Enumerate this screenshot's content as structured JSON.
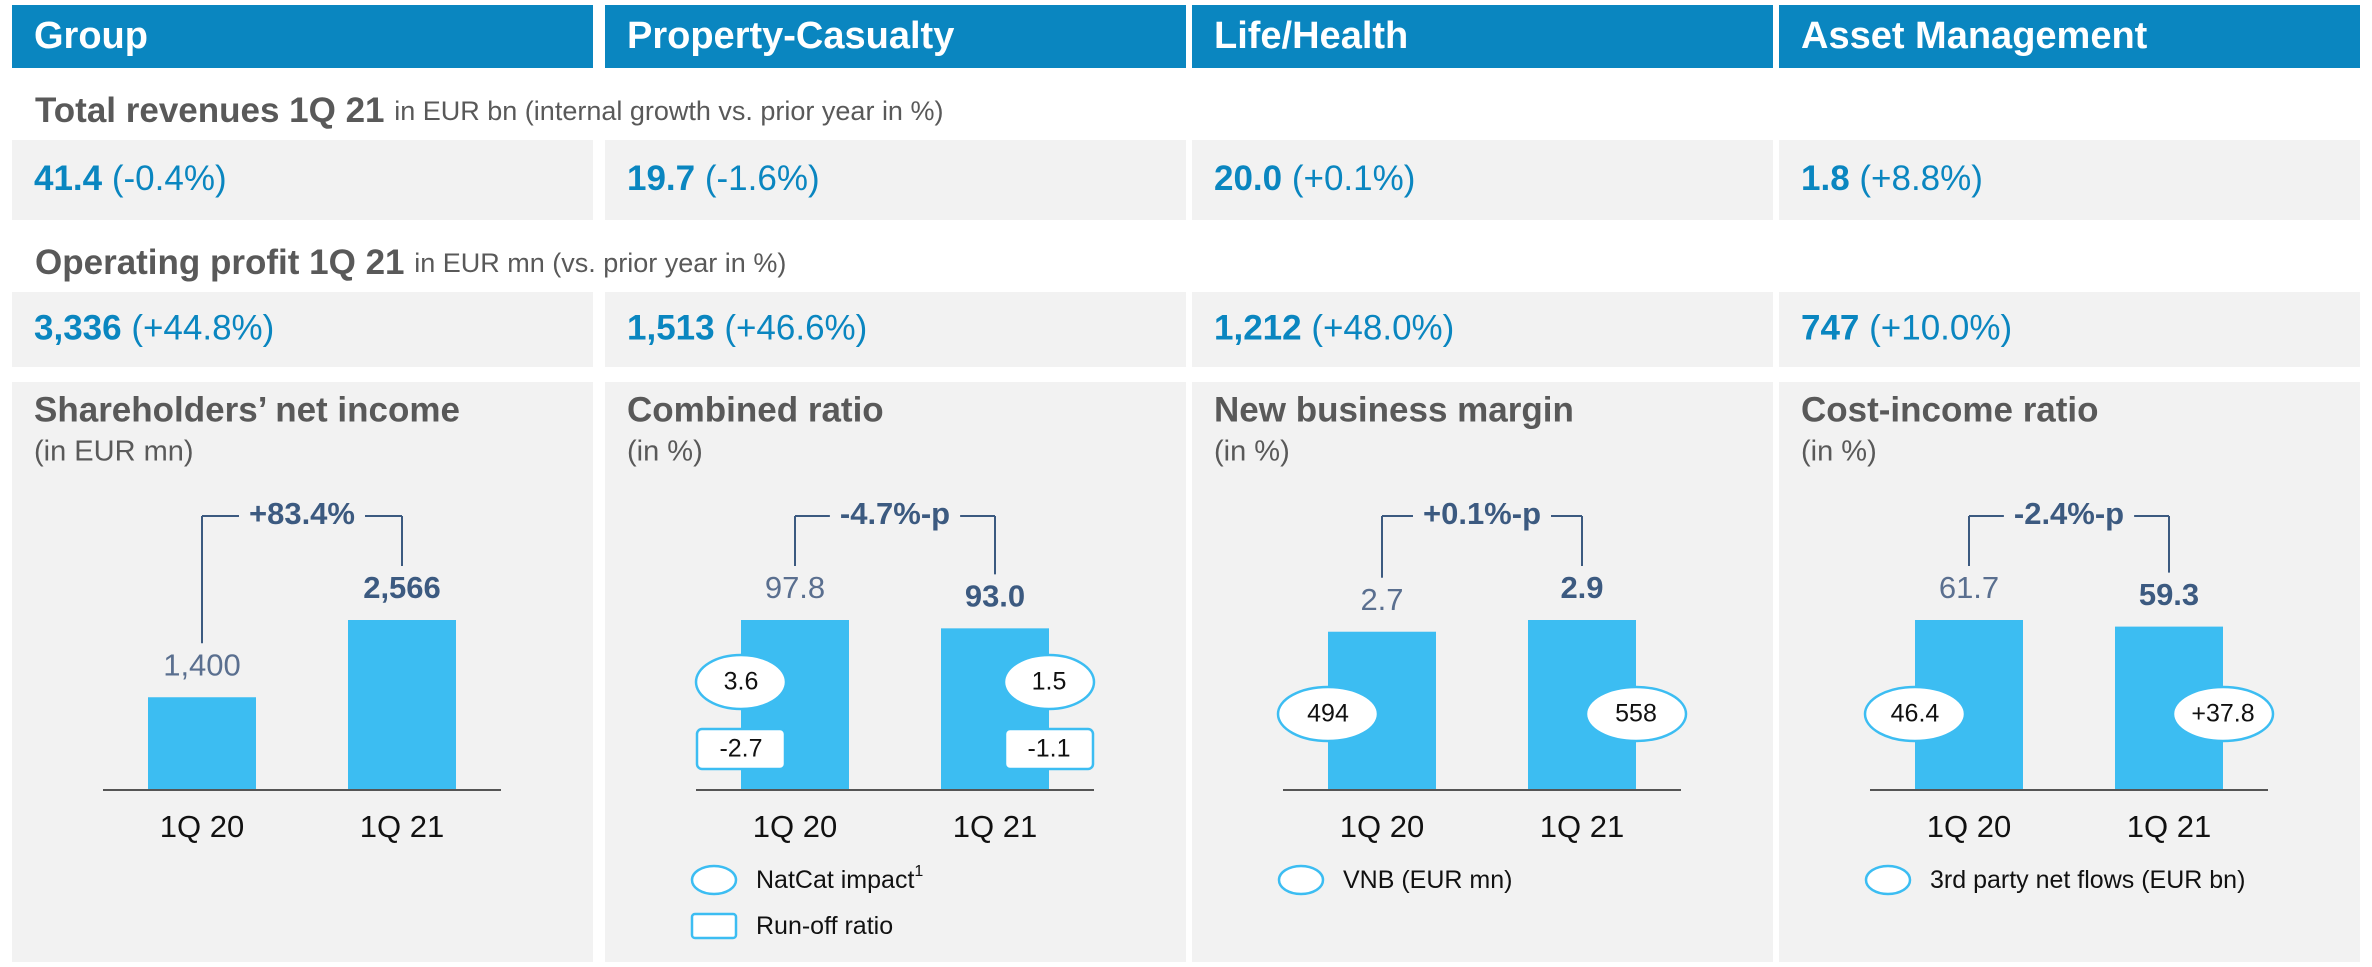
{
  "columns": [
    "Group",
    "Property-Casualty",
    "Life/Health",
    "Asset Management"
  ],
  "revenues": {
    "title": "Total revenues 1Q 21",
    "subtitle": "in EUR bn (internal growth vs. prior year in %)",
    "items": [
      {
        "value": "41.4",
        "change": "(-0.4%)"
      },
      {
        "value": "19.7",
        "change": "(-1.6%)"
      },
      {
        "value": "20.0",
        "change": "(+0.1%)"
      },
      {
        "value": "1.8",
        "change": "(+8.8%)"
      }
    ]
  },
  "operating_profit": {
    "title": "Operating profit 1Q 21",
    "subtitle": "in EUR mn (vs. prior year in %)",
    "items": [
      {
        "value": "3,336",
        "change": "(+44.8%)"
      },
      {
        "value": "1,513",
        "change": "(+46.6%)"
      },
      {
        "value": "1,212",
        "change": "(+48.0%)"
      },
      {
        "value": "747",
        "change": "(+10.0%)"
      }
    ]
  },
  "chart_data": [
    {
      "type": "bar",
      "title": "Shareholders’ net income",
      "subtitle": "(in EUR mn)",
      "categories": [
        "1Q 20",
        "1Q 21"
      ],
      "values": [
        1400,
        2566
      ],
      "value_labels": [
        "1,400",
        "2,566"
      ],
      "annotation": "+83.4%",
      "color": "#3cbdf2"
    },
    {
      "type": "bar",
      "title": "Combined ratio",
      "subtitle": "(in %)",
      "categories": [
        "1Q 20",
        "1Q 21"
      ],
      "values": [
        97.8,
        93.0
      ],
      "value_labels": [
        "97.8",
        "93.0"
      ],
      "annotation": "-4.7%-p",
      "color": "#3cbdf2",
      "markers": [
        {
          "name": "NatCat impact",
          "footnote": "1",
          "shape": "ellipse",
          "values": [
            3.6,
            1.5
          ]
        },
        {
          "name": "Run-off ratio",
          "shape": "rect",
          "values": [
            -2.7,
            -1.1
          ]
        }
      ]
    },
    {
      "type": "bar",
      "title": "New business margin",
      "subtitle": "(in %)",
      "categories": [
        "1Q 20",
        "1Q 21"
      ],
      "values": [
        2.7,
        2.9
      ],
      "annotation": "+0.1%-p",
      "color": "#3cbdf2",
      "markers": [
        {
          "name": "VNB (EUR mn)",
          "shape": "ellipse",
          "values": [
            494,
            558
          ]
        }
      ]
    },
    {
      "type": "bar",
      "title": "Cost-income ratio",
      "subtitle": "(in %)",
      "categories": [
        "1Q 20",
        "1Q 21"
      ],
      "values": [
        61.7,
        59.3
      ],
      "annotation": "-2.4%-p",
      "color": "#3cbdf2",
      "markers": [
        {
          "name": "3rd party net flows (EUR bn)",
          "shape": "ellipse",
          "values": [
            46.4,
            37.8
          ],
          "value_labels": [
            "46.4",
            "+37.8"
          ]
        }
      ]
    }
  ]
}
